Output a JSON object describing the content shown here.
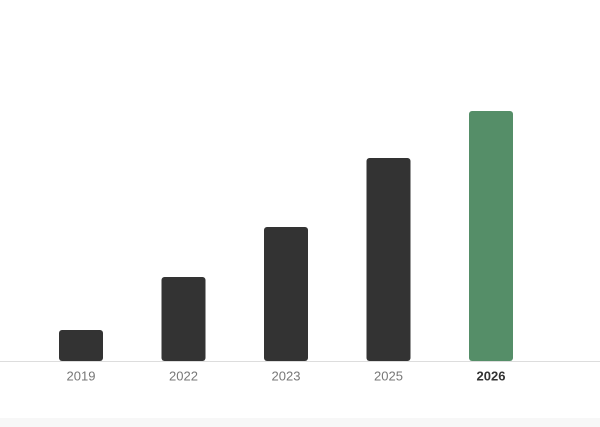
{
  "chart_data": {
    "type": "bar",
    "categories": [
      "2019",
      "2022",
      "2023",
      "2025",
      "2026"
    ],
    "values": [
      31,
      84,
      134,
      203,
      250
    ],
    "color": "#333333",
    "highlight_index": 4,
    "highlight_color": "#558e68",
    "ylim": [
      0,
      361
    ]
  }
}
